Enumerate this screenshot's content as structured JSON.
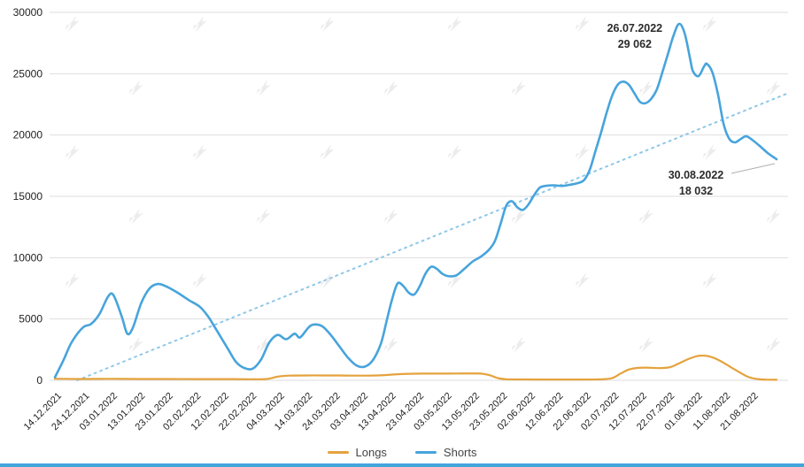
{
  "chart_data": {
    "type": "line",
    "title": "",
    "xlabel": "",
    "ylabel": "",
    "ylim": [
      0,
      30000
    ],
    "yticks": [
      0,
      5000,
      10000,
      15000,
      20000,
      25000,
      30000
    ],
    "grid": "horizontal",
    "legend_position": "bottom",
    "x_unit": "days since 14.12.2021, one category every 10 days",
    "categories": [
      "14.12.2021",
      "24.12.2021",
      "03.01.2022",
      "13.01.2022",
      "23.01.2022",
      "02.02.2022",
      "12.02.2022",
      "22.02.2022",
      "04.03.2022",
      "14.03.2022",
      "24.03.2022",
      "03.04.2022",
      "13.04.2022",
      "23.04.2022",
      "03.05.2022",
      "13.05.2022",
      "23.05.2022",
      "02.06.2022",
      "12.06.2022",
      "22.06.2022",
      "02.07.2022",
      "12.07.2022",
      "22.07.2022",
      "01.08.2022",
      "11.08.2022",
      "21.08.2022"
    ],
    "series": [
      {
        "name": "Longs",
        "color": "#E5A23C",
        "points": [
          [
            0,
            130
          ],
          [
            10,
            110
          ],
          [
            20,
            120
          ],
          [
            30,
            110
          ],
          [
            40,
            110
          ],
          [
            50,
            100
          ],
          [
            60,
            100
          ],
          [
            70,
            90
          ],
          [
            76,
            110
          ],
          [
            80,
            300
          ],
          [
            84,
            380
          ],
          [
            90,
            400
          ],
          [
            96,
            400
          ],
          [
            102,
            395
          ],
          [
            108,
            380
          ],
          [
            114,
            390
          ],
          [
            119,
            430
          ],
          [
            123,
            500
          ],
          [
            127,
            535
          ],
          [
            132,
            545
          ],
          [
            138,
            550
          ],
          [
            144,
            555
          ],
          [
            150,
            560
          ],
          [
            153,
            545
          ],
          [
            156,
            420
          ],
          [
            159,
            180
          ],
          [
            162,
            90
          ],
          [
            168,
            70
          ],
          [
            175,
            65
          ],
          [
            182,
            65
          ],
          [
            190,
            68
          ],
          [
            196,
            80
          ],
          [
            200,
            180
          ],
          [
            203,
            550
          ],
          [
            206,
            880
          ],
          [
            209,
            1010
          ],
          [
            212,
            1040
          ],
          [
            215,
            1010
          ],
          [
            218,
            1000
          ],
          [
            221,
            1090
          ],
          [
            224,
            1380
          ],
          [
            227,
            1700
          ],
          [
            230,
            1950
          ],
          [
            232,
            2010
          ],
          [
            234,
            1990
          ],
          [
            236,
            1870
          ],
          [
            238,
            1680
          ],
          [
            240,
            1430
          ],
          [
            243,
            1020
          ],
          [
            246,
            620
          ],
          [
            249,
            260
          ],
          [
            252,
            110
          ],
          [
            255,
            60
          ],
          [
            259,
            40
          ]
        ]
      },
      {
        "name": "Shorts",
        "color": "#47A4DC",
        "points": [
          [
            0,
            250
          ],
          [
            3,
            1600
          ],
          [
            6,
            3100
          ],
          [
            10,
            4300
          ],
          [
            13,
            4600
          ],
          [
            16,
            5400
          ],
          [
            19,
            6800
          ],
          [
            21,
            6950
          ],
          [
            24,
            5200
          ],
          [
            26,
            3800
          ],
          [
            28,
            4300
          ],
          [
            31,
            6300
          ],
          [
            34,
            7500
          ],
          [
            37,
            7850
          ],
          [
            40,
            7650
          ],
          [
            44,
            7150
          ],
          [
            48,
            6550
          ],
          [
            52,
            6000
          ],
          [
            55,
            5200
          ],
          [
            58,
            4100
          ],
          [
            62,
            2600
          ],
          [
            65,
            1500
          ],
          [
            68,
            1000
          ],
          [
            71,
            950
          ],
          [
            74,
            1700
          ],
          [
            77,
            3100
          ],
          [
            80,
            3700
          ],
          [
            83,
            3350
          ],
          [
            86,
            3800
          ],
          [
            88,
            3500
          ],
          [
            91,
            4300
          ],
          [
            93,
            4550
          ],
          [
            96,
            4400
          ],
          [
            99,
            3700
          ],
          [
            102,
            2800
          ],
          [
            105,
            1900
          ],
          [
            108,
            1250
          ],
          [
            111,
            1100
          ],
          [
            114,
            1600
          ],
          [
            117,
            3000
          ],
          [
            119,
            4800
          ],
          [
            121,
            6600
          ],
          [
            123,
            7900
          ],
          [
            125,
            7700
          ],
          [
            127,
            7150
          ],
          [
            129,
            7000
          ],
          [
            131,
            7700
          ],
          [
            133,
            8700
          ],
          [
            135,
            9250
          ],
          [
            137,
            9100
          ],
          [
            139,
            8700
          ],
          [
            141,
            8500
          ],
          [
            144,
            8550
          ],
          [
            147,
            9100
          ],
          [
            150,
            9700
          ],
          [
            153,
            10100
          ],
          [
            156,
            10700
          ],
          [
            158,
            11400
          ],
          [
            160,
            12800
          ],
          [
            162,
            14250
          ],
          [
            164,
            14600
          ],
          [
            166,
            14100
          ],
          [
            168,
            13900
          ],
          [
            170,
            14350
          ],
          [
            172,
            15100
          ],
          [
            174,
            15700
          ],
          [
            176,
            15850
          ],
          [
            179,
            15900
          ],
          [
            182,
            15850
          ],
          [
            185,
            15950
          ],
          [
            188,
            16100
          ],
          [
            190,
            16350
          ],
          [
            192,
            17200
          ],
          [
            194,
            18700
          ],
          [
            196,
            20200
          ],
          [
            198,
            21800
          ],
          [
            200,
            23200
          ],
          [
            202,
            24100
          ],
          [
            204,
            24350
          ],
          [
            206,
            24100
          ],
          [
            208,
            23400
          ],
          [
            210,
            22700
          ],
          [
            212,
            22600
          ],
          [
            214,
            22950
          ],
          [
            216,
            23700
          ],
          [
            218,
            25100
          ],
          [
            220,
            26600
          ],
          [
            222,
            28100
          ],
          [
            224,
            29062
          ],
          [
            226,
            28300
          ],
          [
            228,
            26200
          ],
          [
            229,
            25200
          ],
          [
            231,
            24800
          ],
          [
            233,
            25600
          ],
          [
            234,
            25800
          ],
          [
            236,
            25100
          ],
          [
            238,
            23300
          ],
          [
            240,
            20900
          ],
          [
            242,
            19700
          ],
          [
            244,
            19400
          ],
          [
            246,
            19650
          ],
          [
            248,
            19900
          ],
          [
            250,
            19650
          ],
          [
            253,
            19100
          ],
          [
            256,
            18500
          ],
          [
            259,
            18032
          ]
        ]
      }
    ],
    "trendline": {
      "style": "dotted",
      "color": "#8FC8E8",
      "points": [
        [
          8,
          0
        ],
        [
          263,
          23400
        ]
      ]
    },
    "annotations": [
      {
        "date": "26.07.2022",
        "value_label": "29 062",
        "day": 224,
        "value": 29062
      },
      {
        "date": "30.08.2022",
        "value_label": "18 032",
        "day": 259,
        "value": 18032
      }
    ],
    "legend": [
      {
        "label": "Longs",
        "color": "#E5A23C"
      },
      {
        "label": "Shorts",
        "color": "#47A4DC"
      }
    ],
    "watermark_color": "#ececec"
  },
  "footer": {
    "accent_color": "#42A5DC"
  }
}
